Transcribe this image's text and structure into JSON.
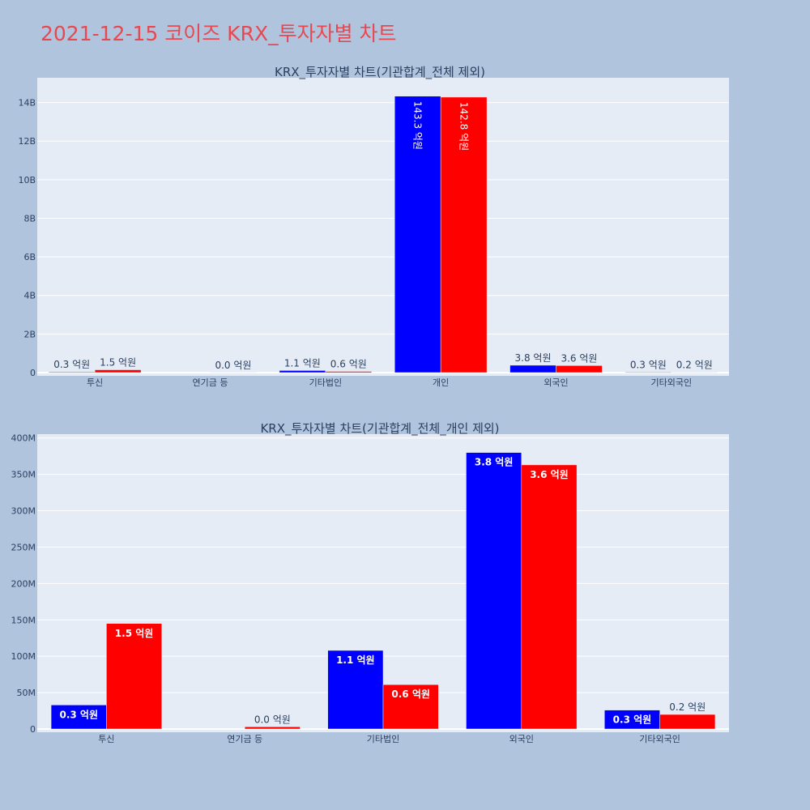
{
  "title": "2021-12-15 코이즈 KRX_투자자별 차트",
  "colors": {
    "page_background": "#b0c4de",
    "plot_background": "#e5ecf6",
    "title": "#e8484f",
    "series_buy": "#0000ff",
    "series_sell": "#ff0000",
    "text": "#2a3f5f"
  },
  "chart_data": [
    {
      "type": "bar",
      "title": "KRX_투자자별 차트(기관합계_전체 제외)",
      "categories": [
        "투신",
        "연기금 등",
        "기타법인",
        "개인",
        "외국인",
        "기타외국인"
      ],
      "series": [
        {
          "color": "#0000ff",
          "values": [
            33000000,
            0,
            108000000,
            14330000000,
            380000000,
            26000000
          ],
          "labels": [
            "0.3 억원",
            "",
            "1.1 억원",
            "143.3 억원",
            "3.8 억원",
            "0.3 억원"
          ]
        },
        {
          "color": "#ff0000",
          "values": [
            145000000,
            3000000,
            61000000,
            14280000000,
            363000000,
            20000000
          ],
          "labels": [
            "1.5 억원",
            "0.0 억원",
            "0.6 억원",
            "142.8 억원",
            "3.6 억원",
            "0.2 억원"
          ]
        }
      ],
      "ylim": [
        0,
        15200000000
      ],
      "yticks": [
        0,
        2000000000,
        4000000000,
        6000000000,
        8000000000,
        10000000000,
        12000000000,
        14000000000
      ],
      "ytick_labels": [
        "0",
        "2B",
        "4B",
        "6B",
        "8B",
        "10B",
        "12B",
        "14B"
      ],
      "grid": true,
      "legend": "none"
    },
    {
      "type": "bar",
      "title": "KRX_투자자별 차트(기관합계_전체_개인 제외)",
      "categories": [
        "투신",
        "연기금 등",
        "기타법인",
        "외국인",
        "기타외국인"
      ],
      "series": [
        {
          "color": "#0000ff",
          "values": [
            33000000,
            0,
            108000000,
            380000000,
            26000000
          ],
          "labels": [
            "0.3 억원",
            "",
            "1.1 억원",
            "3.8 억원",
            "0.3 억원"
          ]
        },
        {
          "color": "#ff0000",
          "values": [
            145000000,
            3000000,
            61000000,
            363000000,
            20000000
          ],
          "labels": [
            "1.5 억원",
            "0.0 억원",
            "0.6 억원",
            "3.6 억원",
            "0.2 억원"
          ]
        }
      ],
      "ylim": [
        0,
        403000000
      ],
      "yticks": [
        0,
        50000000,
        100000000,
        150000000,
        200000000,
        250000000,
        300000000,
        350000000,
        400000000
      ],
      "ytick_labels": [
        "0",
        "50M",
        "100M",
        "150M",
        "200M",
        "250M",
        "300M",
        "350M",
        "400M"
      ],
      "grid": true,
      "legend": "none"
    }
  ]
}
